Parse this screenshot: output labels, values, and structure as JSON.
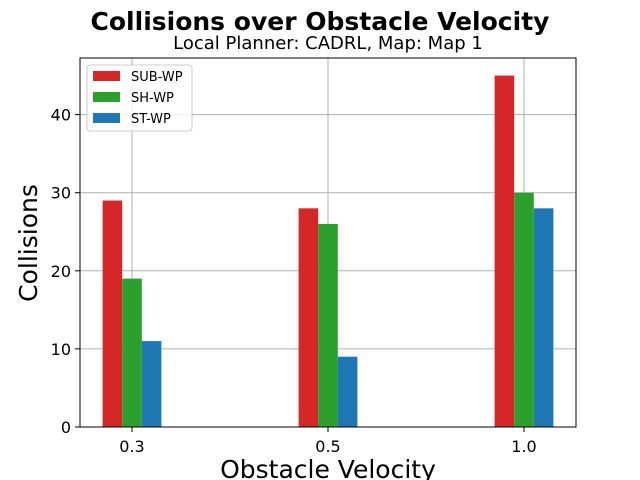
{
  "chart_data": {
    "type": "bar",
    "title": "Collisions over Obstacle Velocity",
    "subtitle": "Local Planner: CADRL, Map: Map 1",
    "xlabel": "Obstacle Velocity",
    "ylabel": "Collisions",
    "categories": [
      "0.3",
      "0.5",
      "1.0"
    ],
    "series": [
      {
        "name": "SUB-WP",
        "color": "#d62728",
        "values": [
          29,
          28,
          45
        ]
      },
      {
        "name": "SH-WP",
        "color": "#2ca02c",
        "values": [
          19,
          26,
          30
        ]
      },
      {
        "name": "ST-WP",
        "color": "#1f77b4",
        "values": [
          11,
          9,
          28
        ]
      }
    ],
    "ylim": [
      0,
      47.25
    ],
    "yticks": [
      0,
      10,
      20,
      30,
      40
    ],
    "grid": true,
    "legend_position": "top-left"
  }
}
